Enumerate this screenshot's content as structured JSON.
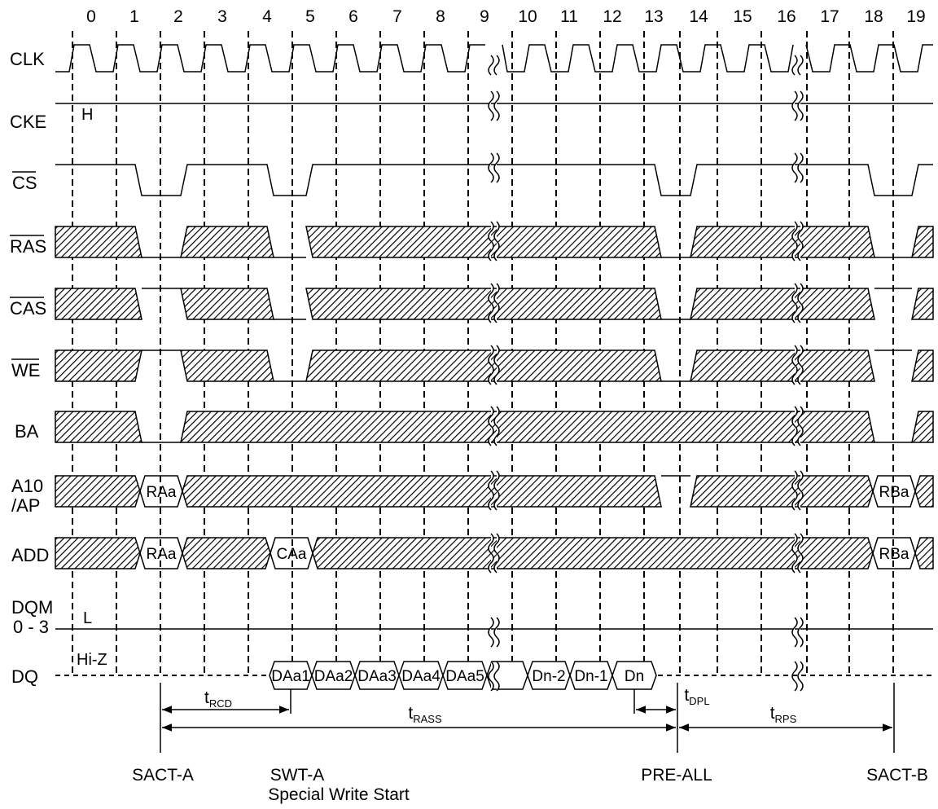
{
  "cycles": [
    "0",
    "1",
    "2",
    "3",
    "4",
    "5",
    "6",
    "7",
    "8",
    "9",
    "10",
    "11",
    "12",
    "13",
    "14",
    "15",
    "16",
    "17",
    "18",
    "19"
  ],
  "signals": {
    "clk": "CLK",
    "cke": "CKE",
    "cs": "CS",
    "ras": "RAS",
    "cas": "CAS",
    "we": "WE",
    "ba": "BA",
    "a10_line1": "A10",
    "a10_line2": "/AP",
    "add": "ADD",
    "dqm_line1": "DQM",
    "dqm_line2": "0 - 3",
    "dq": "DQ"
  },
  "levels": {
    "cke": "H",
    "dqm": "L",
    "dq": "Hi-Z"
  },
  "a10_labels": [
    "RAa",
    "RBa"
  ],
  "add_labels": [
    "RAa",
    "CAa",
    "RBa"
  ],
  "dq_labels": [
    "DAa1",
    "DAa2",
    "DAa3",
    "DAa4",
    "DAa5",
    "Dn-2",
    "Dn-1",
    "Dn"
  ],
  "timings": {
    "trcd": {
      "t": "t",
      "sub": "RCD"
    },
    "trass": {
      "t": "t",
      "sub": "RASS"
    },
    "tdpl": {
      "t": "t",
      "sub": "DPL"
    },
    "trps": {
      "t": "t",
      "sub": "RPS"
    }
  },
  "commands": {
    "sact_a": "SACT-A",
    "swt_a": "SWT-A",
    "swt_a_desc": "Special Write Start",
    "pre_all": "PRE-ALL",
    "sact_b": "SACT-B"
  }
}
